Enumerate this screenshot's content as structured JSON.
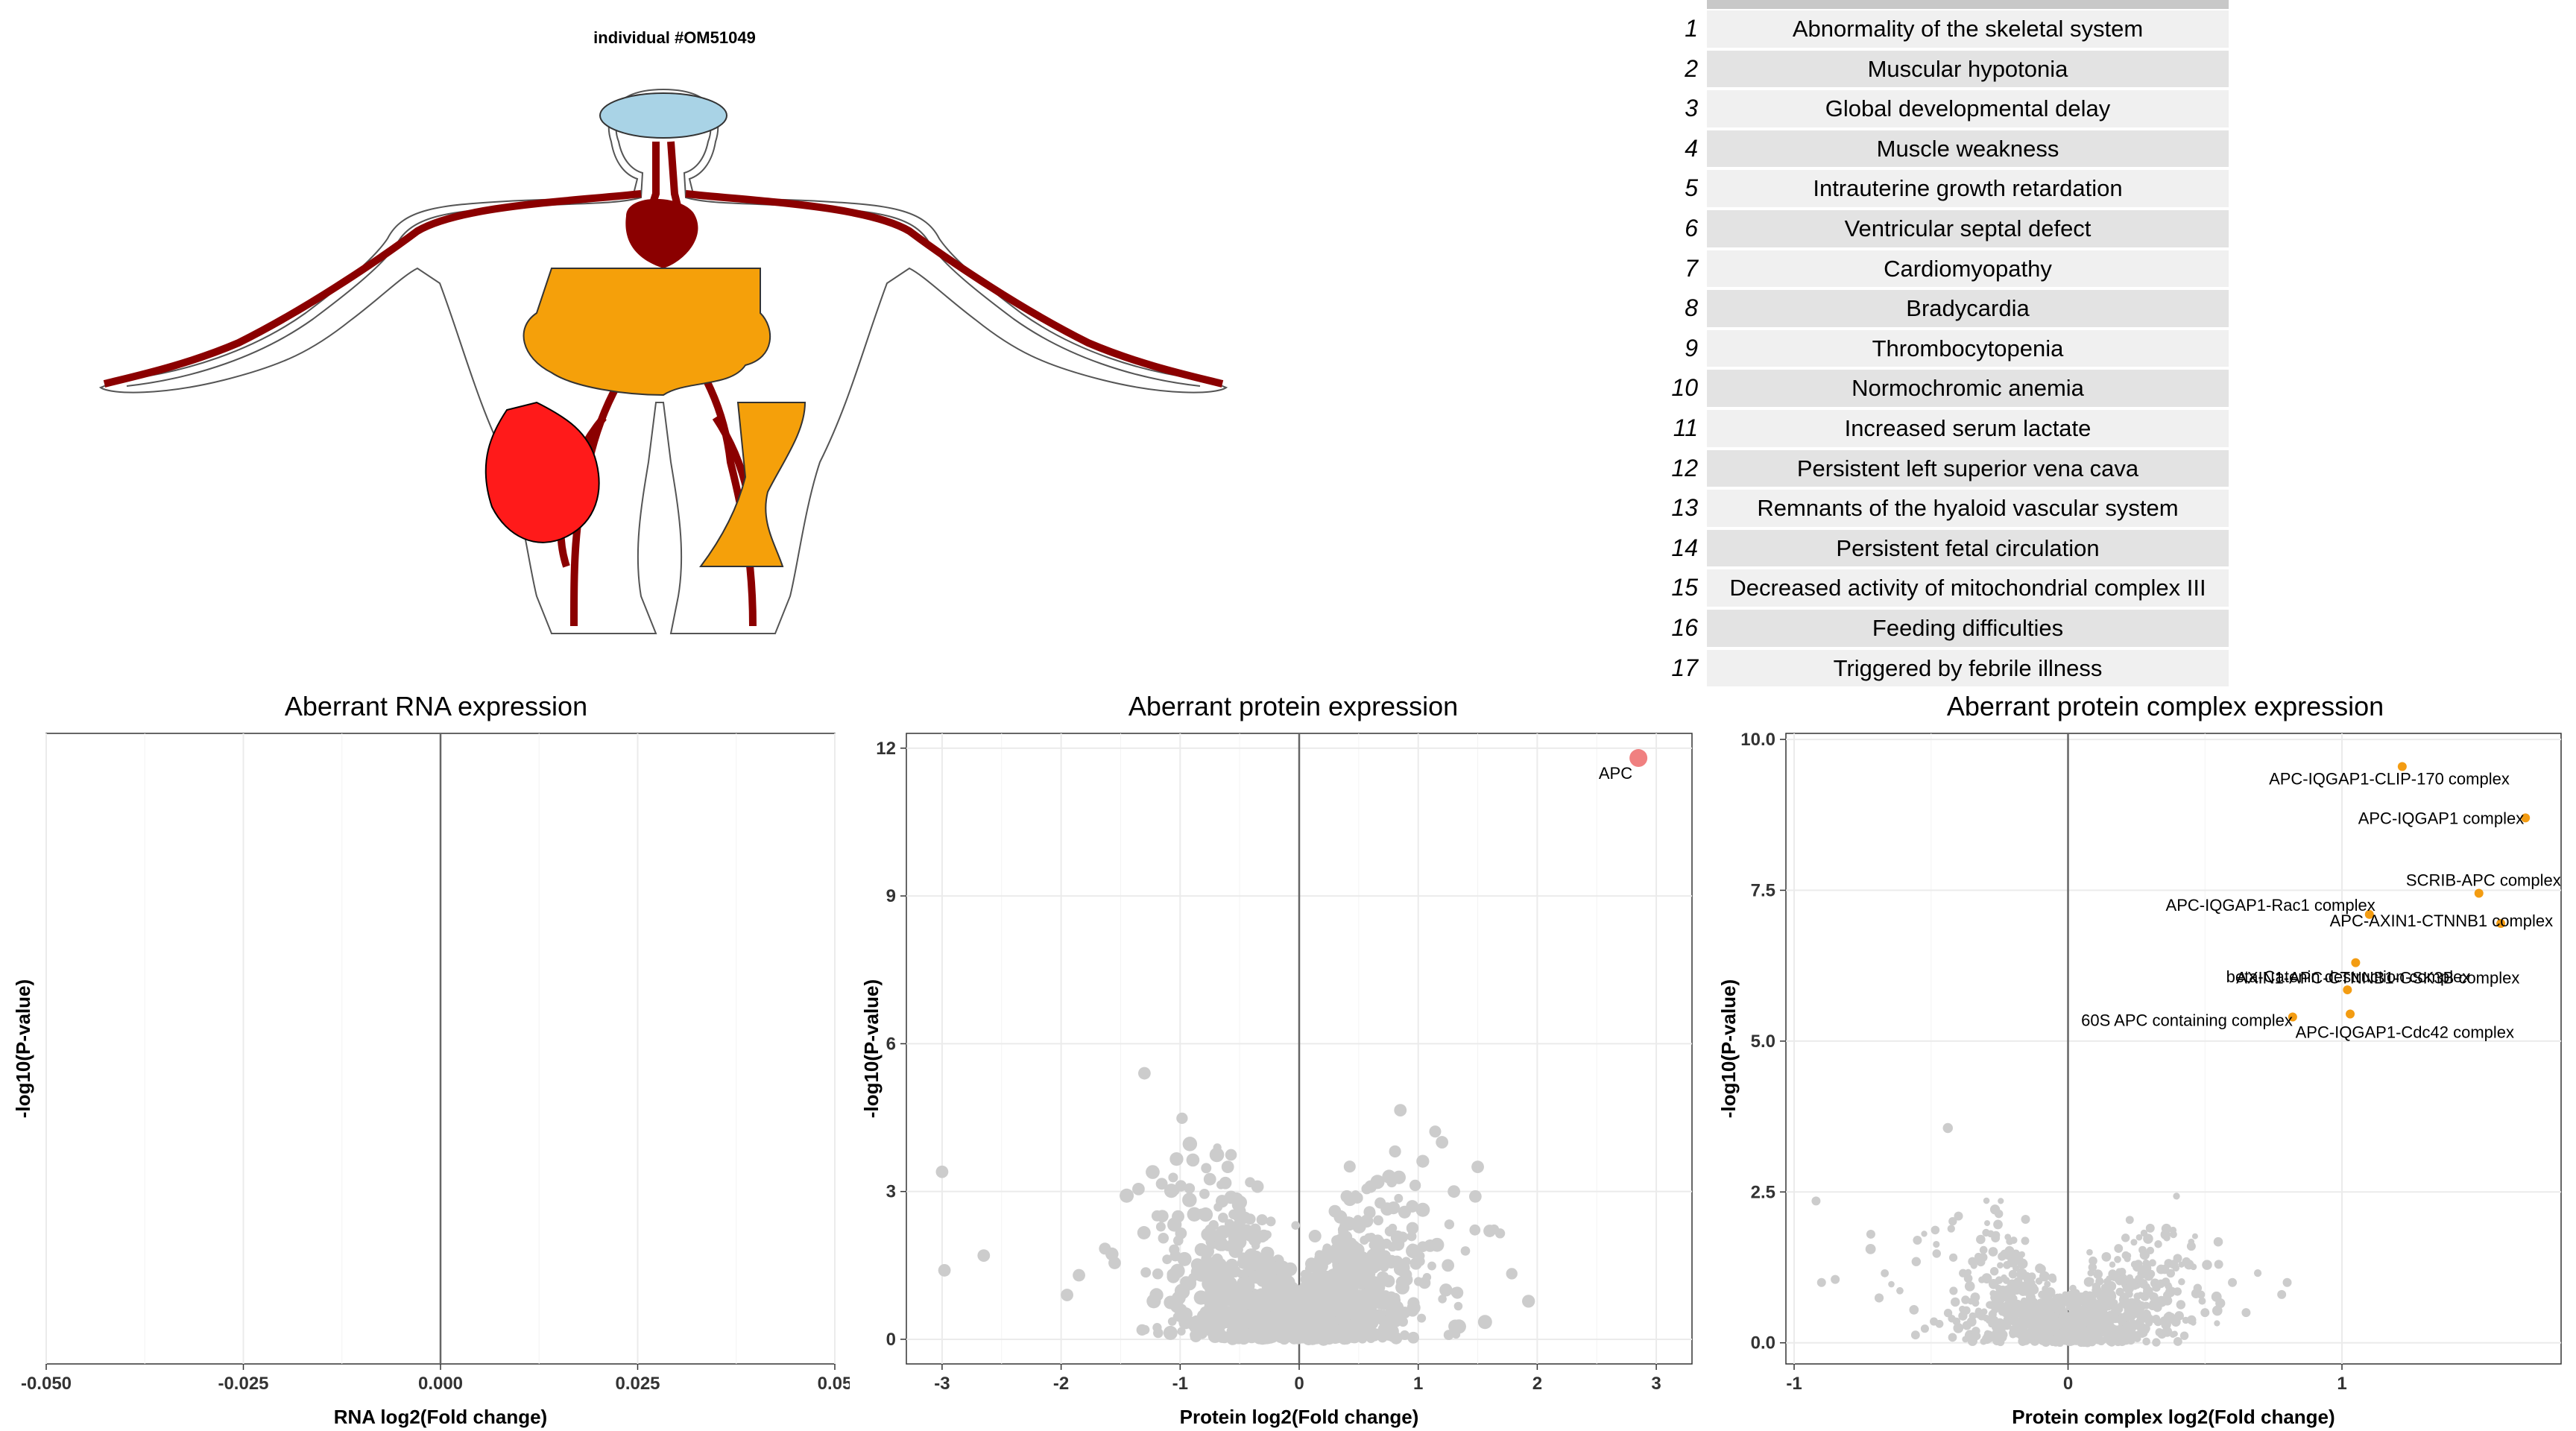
{
  "individual_title": "individual #OM51049",
  "phenotypes": [
    {
      "n": "1",
      "label": "Abnormality of the skeletal system"
    },
    {
      "n": "2",
      "label": "Muscular hypotonia"
    },
    {
      "n": "3",
      "label": "Global developmental delay"
    },
    {
      "n": "4",
      "label": "Muscle weakness"
    },
    {
      "n": "5",
      "label": "Intrauterine growth retardation"
    },
    {
      "n": "6",
      "label": "Ventricular septal defect"
    },
    {
      "n": "7",
      "label": "Cardiomyopathy"
    },
    {
      "n": "8",
      "label": "Bradycardia"
    },
    {
      "n": "9",
      "label": "Thrombocytopenia"
    },
    {
      "n": "10",
      "label": "Normochromic anemia"
    },
    {
      "n": "11",
      "label": "Increased serum lactate"
    },
    {
      "n": "12",
      "label": "Persistent left superior vena cava"
    },
    {
      "n": "13",
      "label": "Remnants of the hyaloid vascular system"
    },
    {
      "n": "14",
      "label": "Persistent fetal circulation"
    },
    {
      "n": "15",
      "label": "Decreased activity of mitochondrial complex III"
    },
    {
      "n": "16",
      "label": "Feeding difficulties"
    },
    {
      "n": "17",
      "label": "Triggered by febrile illness"
    }
  ],
  "colors": {
    "background_points": "#cccccc",
    "protein_highlight": "#f08080",
    "complex_highlight": "#f39c12",
    "vessel": "#8b0000",
    "organ_orange": "#f5a00a",
    "organ_red": "#ff1a1a",
    "brain": "#a9d3e6"
  },
  "chart_data": [
    {
      "type": "scatter",
      "title": "Aberrant RNA expression",
      "xlabel": "RNA log2(Fold change)",
      "ylabel": "-log10(P-value)",
      "xlim": [
        -0.05,
        0.05
      ],
      "xticks": [
        "-0.050",
        "-0.025",
        "0.000",
        "0.025",
        "0.05"
      ],
      "yticks": [],
      "grid": true,
      "points": []
    },
    {
      "type": "scatter",
      "title": "Aberrant protein expression",
      "xlabel": "Protein log2(Fold change)",
      "ylabel": "-log10(P-value)",
      "xlim": [
        -3.3,
        3.3
      ],
      "ylim": [
        -0.5,
        12.3
      ],
      "xticks": [
        "-3",
        "-2",
        "-1",
        "0",
        "1",
        "2",
        "3"
      ],
      "yticks": [
        "0",
        "3",
        "6",
        "9",
        "12"
      ],
      "grid": true,
      "highlight": [
        {
          "x": 2.85,
          "y": 11.8,
          "label": "APC"
        }
      ],
      "background_points": [
        {
          "x": -3.0,
          "y": 3.4
        },
        {
          "x": -2.98,
          "y": 1.4
        },
        {
          "x": -2.65,
          "y": 1.7
        },
        {
          "x": -1.3,
          "y": 5.4
        },
        {
          "x": -1.95,
          "y": 0.9
        },
        {
          "x": -1.85,
          "y": 1.3
        },
        {
          "x": -1.55,
          "y": 1.55
        },
        {
          "x": -1.35,
          "y": 3.05
        },
        {
          "x": -1.15,
          "y": 2.5
        },
        {
          "x": -0.75,
          "y": 3.25
        },
        {
          "x": -0.6,
          "y": 3.5
        },
        {
          "x": -0.35,
          "y": 3.1
        },
        {
          "x": 0.4,
          "y": 2.9
        },
        {
          "x": 0.85,
          "y": 4.65
        },
        {
          "x": 1.2,
          "y": 4.0
        },
        {
          "x": 0.6,
          "y": 3.1
        },
        {
          "x": 1.5,
          "y": 3.5
        },
        {
          "x": 1.48,
          "y": 2.9
        },
        {
          "x": 1.6,
          "y": 2.2
        },
        {
          "x": 1.25,
          "y": 1.5
        },
        {
          "x": 1.3,
          "y": 3.0
        },
        {
          "x": 1.1,
          "y": 1.9
        },
        {
          "x": 0.95,
          "y": 2.7
        },
        {
          "x": -0.5,
          "y": 2.6
        },
        {
          "x": 0.3,
          "y": 2.6
        }
      ],
      "cloud": {
        "x_spread": 1.1,
        "y_spread": 2.0
      }
    },
    {
      "type": "scatter",
      "title": "Aberrant protein complex expression",
      "xlabel": "Protein complex log2(Fold change)",
      "ylabel": "-log10(P-value)",
      "xlim": [
        -1.03,
        1.8
      ],
      "ylim": [
        -0.35,
        10.1
      ],
      "xticks": [
        "-1",
        "0",
        "1"
      ],
      "yticks": [
        "0.0",
        "2.5",
        "5.0",
        "7.5",
        "10.0"
      ],
      "grid": true,
      "highlight": [
        {
          "x": 1.22,
          "y": 9.55,
          "label": "APC-IQGAP1-CLIP-170 complex"
        },
        {
          "x": 1.67,
          "y": 8.7,
          "label": "APC-IQGAP1 complex"
        },
        {
          "x": 1.5,
          "y": 7.45,
          "label": "SCRIB-APC complex"
        },
        {
          "x": 1.1,
          "y": 7.1,
          "label": "APC-IQGAP1-Rac1 complex"
        },
        {
          "x": 1.58,
          "y": 6.95,
          "label": "APC-AXIN1-CTNNB1 complex"
        },
        {
          "x": 1.05,
          "y": 6.3,
          "label": "AXIN1-APC-CTNNB1-GSK3B complex"
        },
        {
          "x": 1.02,
          "y": 5.85,
          "label": "beta-Catenin destruction complex"
        },
        {
          "x": 0.82,
          "y": 5.4,
          "label": "60S APC containing complex"
        },
        {
          "x": 1.03,
          "y": 5.45,
          "label": "APC-IQGAP1-Cdc42 complex"
        }
      ],
      "background_points": [
        {
          "x": -0.92,
          "y": 2.35
        },
        {
          "x": -0.9,
          "y": 1.0
        },
        {
          "x": -0.85,
          "y": 1.05
        },
        {
          "x": -0.72,
          "y": 1.8
        },
        {
          "x": -0.55,
          "y": 1.7
        },
        {
          "x": -0.4,
          "y": 2.1
        },
        {
          "x": 0.3,
          "y": 1.9
        },
        {
          "x": 0.45,
          "y": 1.6
        },
        {
          "x": 0.55,
          "y": 1.3
        },
        {
          "x": 0.6,
          "y": 1.0
        },
        {
          "x": 0.8,
          "y": 1.0
        },
        {
          "x": 0.78,
          "y": 0.8
        },
        {
          "x": 0.65,
          "y": 0.5
        },
        {
          "x": 0.5,
          "y": 0.5
        },
        {
          "x": 0.4,
          "y": 1.4
        }
      ],
      "cloud": {
        "x_spread": 0.45,
        "y_spread": 1.2
      }
    }
  ]
}
